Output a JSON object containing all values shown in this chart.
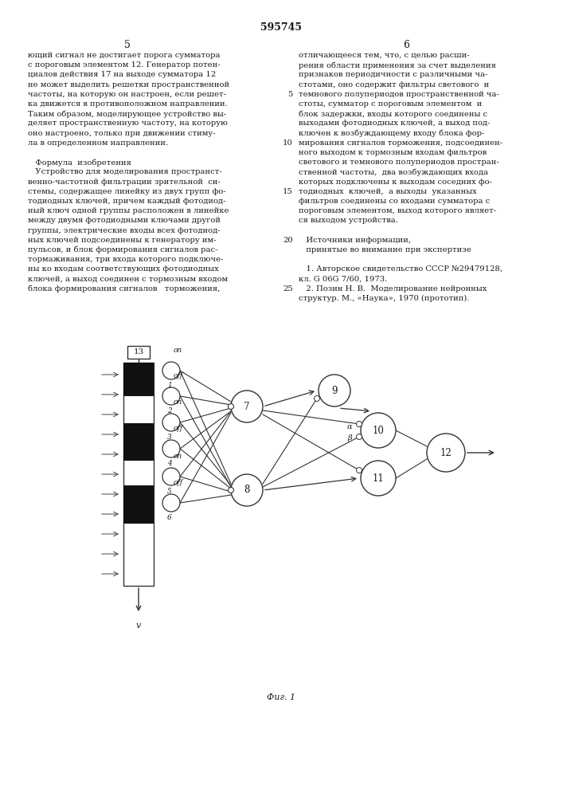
{
  "title": "595745",
  "bg_color": "#ffffff",
  "text_color": "#1a1a1a",
  "fig_caption": "Фиг. 1",
  "left_col_lines": [
    "ющий сигнал не достигает порога сумматора",
    "с пороговым элементом 12. Генератор потен-",
    "циалов действия 17 на выходе сумматора 12",
    "не может выделить решетки пространственной",
    "частоты, на которую он настроен, если решет-",
    "ка движется в противоположном направлении.",
    "Таким образом, моделирующее устройство вы-",
    "деляет пространственную частоту, на которую",
    "оно настроено, только при движении стиму-",
    "ла в определенном направлении.",
    "",
    "   Формула  изобретения",
    "   Устройство для моделирования пространст-",
    "венно-частотной фильтрации зрительной  си-",
    "стемы, содержащее линейку из двух групп фо-",
    "тодиодных ключей, причем каждый фотодиод-",
    "ный ключ одной группы расположен в линейке",
    "между двумя фотодиодными ключами другой",
    "группы, электрические входы всех фотодиод-",
    "ных ключей подсоединены к генератору им-",
    "пульсов, и блок формирования сигналов рас-",
    "тормаживания, три входа которого подключе-",
    "ны ко входам соответствующих фотодиодных",
    "ключей, а выход соединен с тормозным входом",
    "блока формирования сигналов   торможения,"
  ],
  "right_col_lines": [
    "отличающееся тем, что, с целью расши-",
    "рения области применения за счет выделения",
    "признаков периодичности с различными ча-",
    "стотами, оно содержит фильтры светового  и",
    "темнового полупериодов пространственной ча-",
    "стоты, сумматор с пороговым элементом  и",
    "блок задержки, входы которого соединены с",
    "выходами фотодиодных ключей, а выход под-",
    "ключен к возбуждающему входу блока фор-",
    "мирования сигналов торможения, подсоединен-",
    "ного выходом к тормозным входам фильтров",
    "светового и темнового полупериодов простран-",
    "ственной частоты,  два возбуждающих входа",
    "которых подключены к выходам соседних фо-",
    "тодиодных  ключей,  а выходы  указанных",
    "фильтров соединены со входами сумматора с",
    "пороговым элементом, выход которого являет-",
    "ся выходом устройства.",
    "",
    "   Источники информации,",
    "   принятые во внимание при экспертизе",
    "",
    "   1. Авторское свидетельство СССР №29479128,",
    "кл. G 06G 7/60, 1973.",
    "   2. Позин Н. В.  Моделирование нейронных",
    "структур. М., «Наука», 1970 (прототип)."
  ],
  "line_numbers": {
    "5": 0,
    "10": 4,
    "15": 9,
    "20": 14,
    "25": 19
  }
}
